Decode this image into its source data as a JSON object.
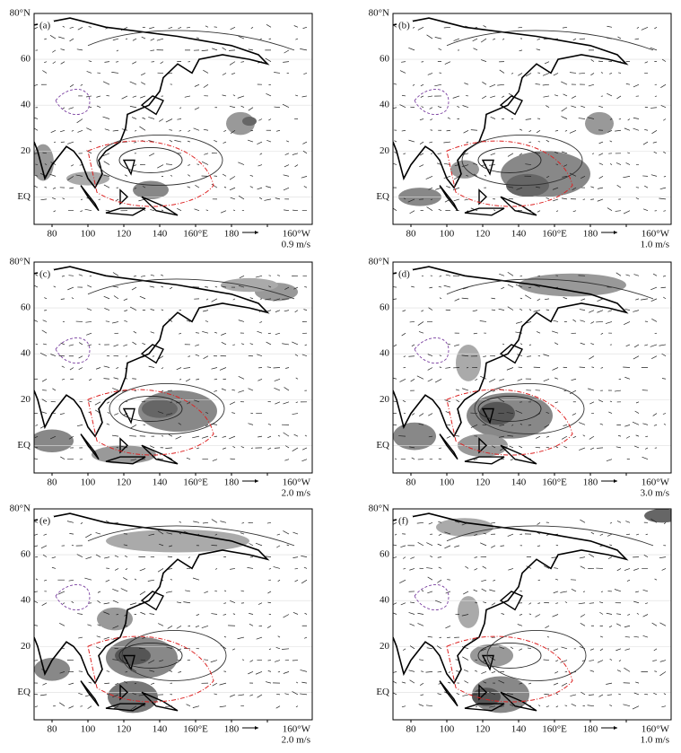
{
  "x_axis_labels": [
    "80",
    "100",
    "120",
    "140",
    "160°E",
    "180",
    "160°W"
  ],
  "y_axis_labels": [
    "80°N",
    "60",
    "40",
    "20",
    "EQ"
  ],
  "panels": [
    {
      "label": "(a)",
      "vector_scale": "0.9 m/s"
    },
    {
      "label": "(b)",
      "vector_scale": "1.0 m/s"
    },
    {
      "label": "(c)",
      "vector_scale": "2.0 m/s"
    },
    {
      "label": "(d)",
      "vector_scale": "3.0 m/s"
    },
    {
      "label": "(e)",
      "vector_scale": "2.0 m/s"
    },
    {
      "label": "(f)",
      "vector_scale": "1.0 m/s"
    }
  ]
}
